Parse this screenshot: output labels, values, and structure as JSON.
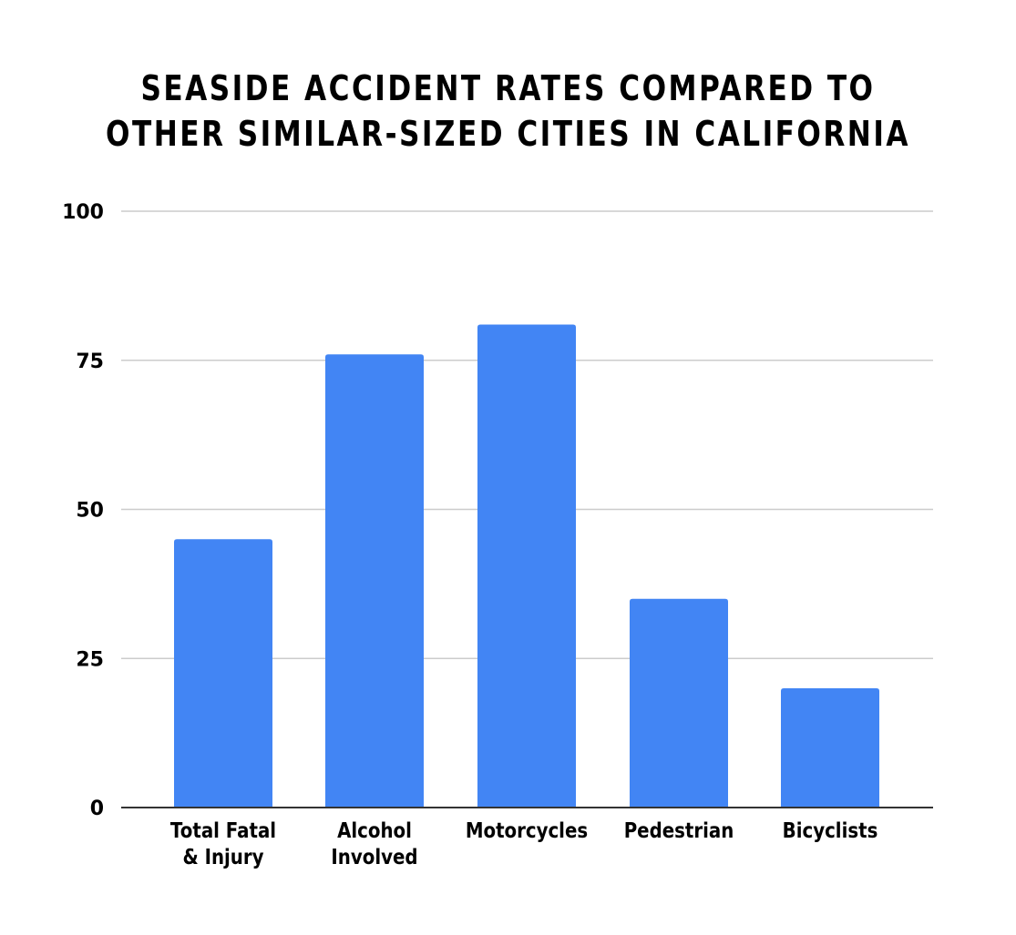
{
  "chart_data": {
    "type": "bar",
    "title_lines": [
      "SEASIDE ACCIDENT RATES COMPARED TO",
      "OTHER SIMILAR-SIZED CITIES IN CALIFORNIA"
    ],
    "categories": [
      "Total Fatal & Injury",
      "Alcohol Involved",
      "Motorcycles",
      "Pedestrian",
      "Bicyclists"
    ],
    "category_label_lines": [
      [
        "Total Fatal",
        "& Injury"
      ],
      [
        "Alcohol",
        "Involved"
      ],
      [
        "Motorcycles"
      ],
      [
        "Pedestrian"
      ],
      [
        "Bicyclists"
      ]
    ],
    "values": [
      45,
      76,
      81,
      35,
      20
    ],
    "ylim": [
      0,
      100
    ],
    "yticks": [
      "0",
      "25",
      "50",
      "75",
      "100"
    ],
    "grid": true,
    "colors": {
      "bar": "#4285f4",
      "grid": "#cccccc",
      "axis": "#333333",
      "text": "#000000"
    }
  }
}
